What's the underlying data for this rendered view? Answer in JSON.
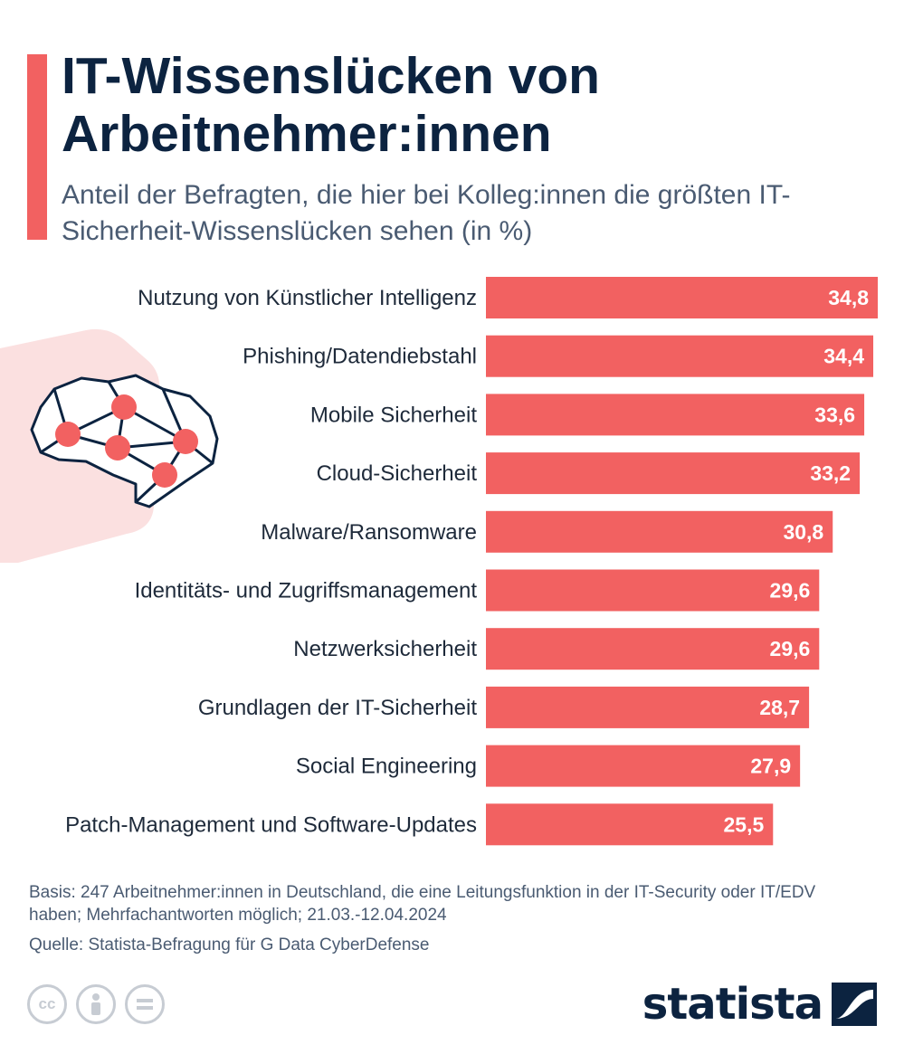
{
  "header": {
    "title": "IT-Wissenslücken von Arbeitnehmer:innen",
    "subtitle": "Anteil der Befragten, die hier bei Kolleg:innen die größten IT-Sicherheit-Wissenslücken sehen (in %)"
  },
  "chart_data": {
    "type": "bar",
    "orientation": "horizontal",
    "categories": [
      "Nutzung von Künstlicher Intelligenz",
      "Phishing/Datendiebstahl",
      "Mobile Sicherheit",
      "Cloud-Sicherheit",
      "Malware/Ransomware",
      "Identitäts- und Zugriffsmanagement",
      "Netzwerksicherheit",
      "Grundlagen der IT-Sicherheit",
      "Social Engineering",
      "Patch-Management und Software-Updates"
    ],
    "values": [
      34.8,
      34.4,
      33.6,
      33.2,
      30.8,
      29.6,
      29.6,
      28.7,
      27.9,
      25.5
    ],
    "value_labels": [
      "34,8",
      "34,4",
      "33,6",
      "33,2",
      "30,8",
      "29,6",
      "29,6",
      "28,7",
      "27,9",
      "25,5"
    ],
    "bar_color": "#f26161",
    "xlim": [
      0,
      34.8
    ],
    "grid": false,
    "legend": "none"
  },
  "footer": {
    "basis": "Basis: 247 Arbeitnehmer:innen in Deutschland, die eine Leitungsfunktion in der IT-Security oder IT/EDV haben; Mehrfachantworten möglich; 21.03.-12.04.2024",
    "source": "Quelle: Statista-Befragung für G Data CyberDefense",
    "license_icons": [
      "cc-icon",
      "attribution-icon",
      "no-derivatives-icon"
    ],
    "brand": "statista"
  },
  "colors": {
    "accent": "#f26161",
    "navy": "#0c2340",
    "text": "#1e2a3a",
    "muted": "#4a5b72",
    "illustration_bg": "#fbe0e0"
  }
}
